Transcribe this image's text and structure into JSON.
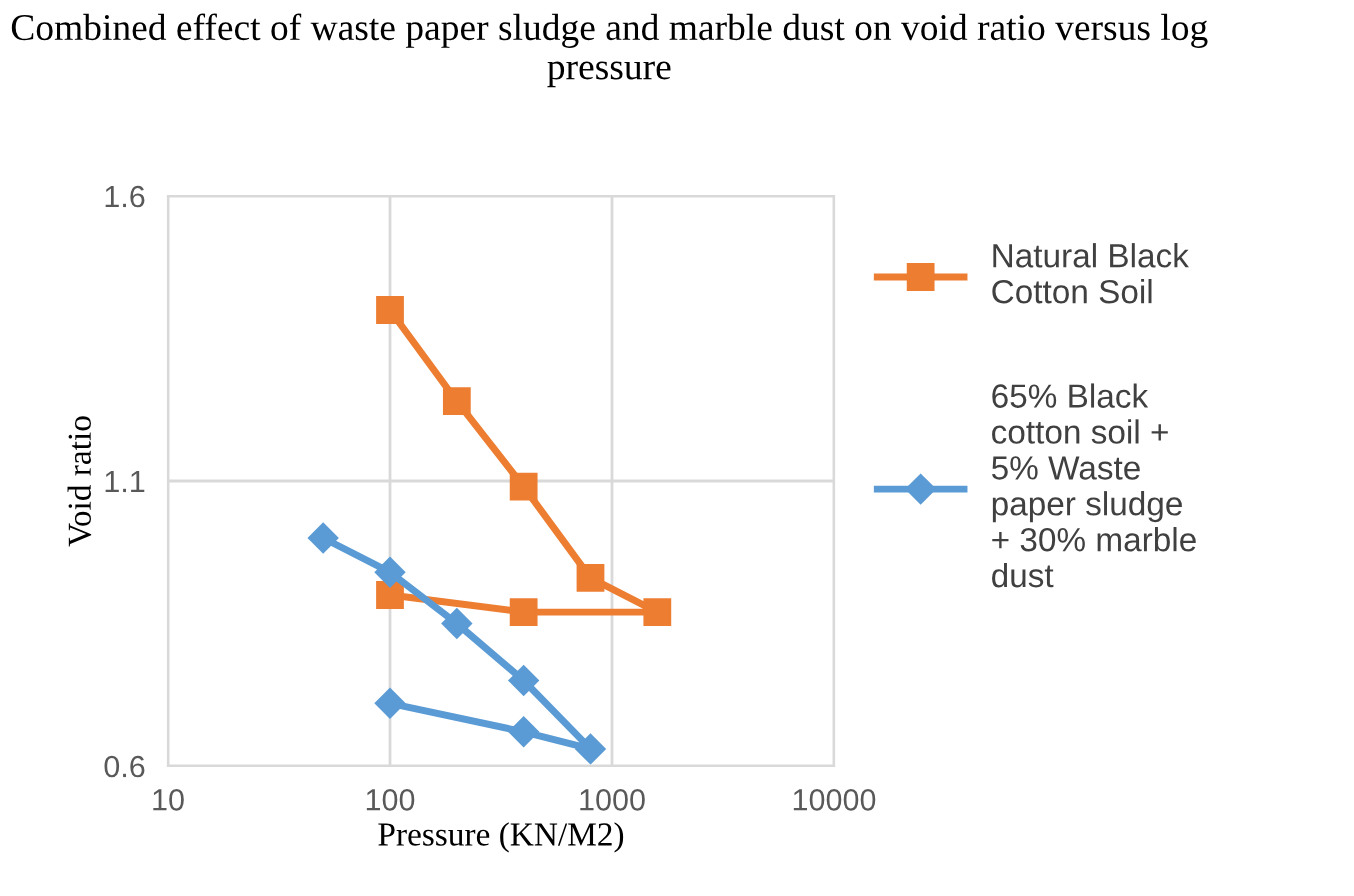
{
  "chart_data": {
    "type": "line",
    "title": "Combined effect of waste paper sludge and marble dust on void ratio versus log pressure",
    "xlabel": "Pressure (KN/M2)",
    "ylabel": "Void ratio",
    "log": "x",
    "xlim": [
      10,
      10000
    ],
    "xticks": [
      10,
      100,
      1000,
      10000
    ],
    "ylim": [
      0.6,
      1.6
    ],
    "yticks": [
      0.6,
      1.1,
      1.6
    ],
    "grid": true,
    "legend": "right",
    "series": [
      {
        "name": "Natural Black Cotton Soil",
        "color": "#ed7d31",
        "marker": "square",
        "x": [
          100,
          200,
          400,
          800,
          1600,
          400,
          100
        ],
        "values": [
          1.4,
          1.24,
          1.09,
          0.93,
          0.87,
          0.87,
          0.9
        ]
      },
      {
        "name": "65% Black cotton soil + 5% Waste paper sludge + 30% marble dust",
        "color": "#5b9bd5",
        "marker": "diamond",
        "x": [
          50,
          100,
          200,
          400,
          800,
          400,
          100
        ],
        "values": [
          1.0,
          0.94,
          0.85,
          0.75,
          0.63,
          0.66,
          0.71
        ]
      }
    ]
  }
}
